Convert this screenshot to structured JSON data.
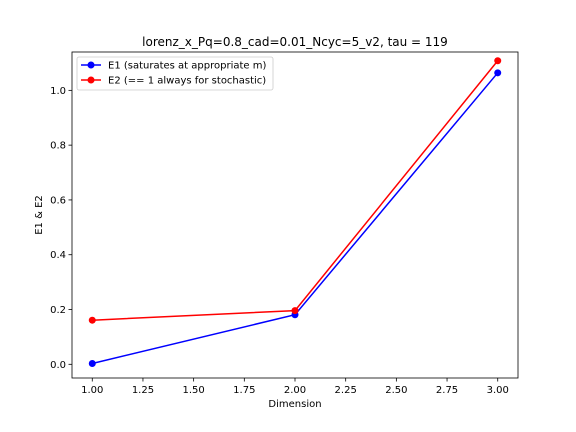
{
  "chart_data": {
    "type": "line",
    "title": "lorenz_x_Pq=0.8_cad=0.01_Ncyc=5_v2, tau = 119",
    "xlabel": "Dimension",
    "ylabel": "E1 & E2",
    "x": [
      1.0,
      2.0,
      3.0
    ],
    "xlim": [
      0.9,
      3.1
    ],
    "ylim": [
      -0.05,
      1.14
    ],
    "xticks": [
      1.0,
      1.25,
      1.5,
      1.75,
      2.0,
      2.25,
      2.5,
      2.75,
      3.0
    ],
    "xtick_labels": [
      "1.00",
      "1.25",
      "1.50",
      "1.75",
      "2.00",
      "2.25",
      "2.50",
      "2.75",
      "3.00"
    ],
    "yticks": [
      0.0,
      0.2,
      0.4,
      0.6,
      0.8,
      1.0
    ],
    "ytick_labels": [
      "0.0",
      "0.2",
      "0.4",
      "0.6",
      "0.8",
      "1.0"
    ],
    "grid": false,
    "legend_position": "upper-left",
    "series": [
      {
        "name": "E1 (saturates at appropriate m)",
        "color": "#0000ff",
        "marker": "circle",
        "values": [
          0.003,
          0.181,
          1.064
        ]
      },
      {
        "name": "E2 (== 1 always for stochastic)",
        "color": "#ff0000",
        "marker": "circle",
        "values": [
          0.161,
          0.196,
          1.108
        ]
      }
    ]
  }
}
